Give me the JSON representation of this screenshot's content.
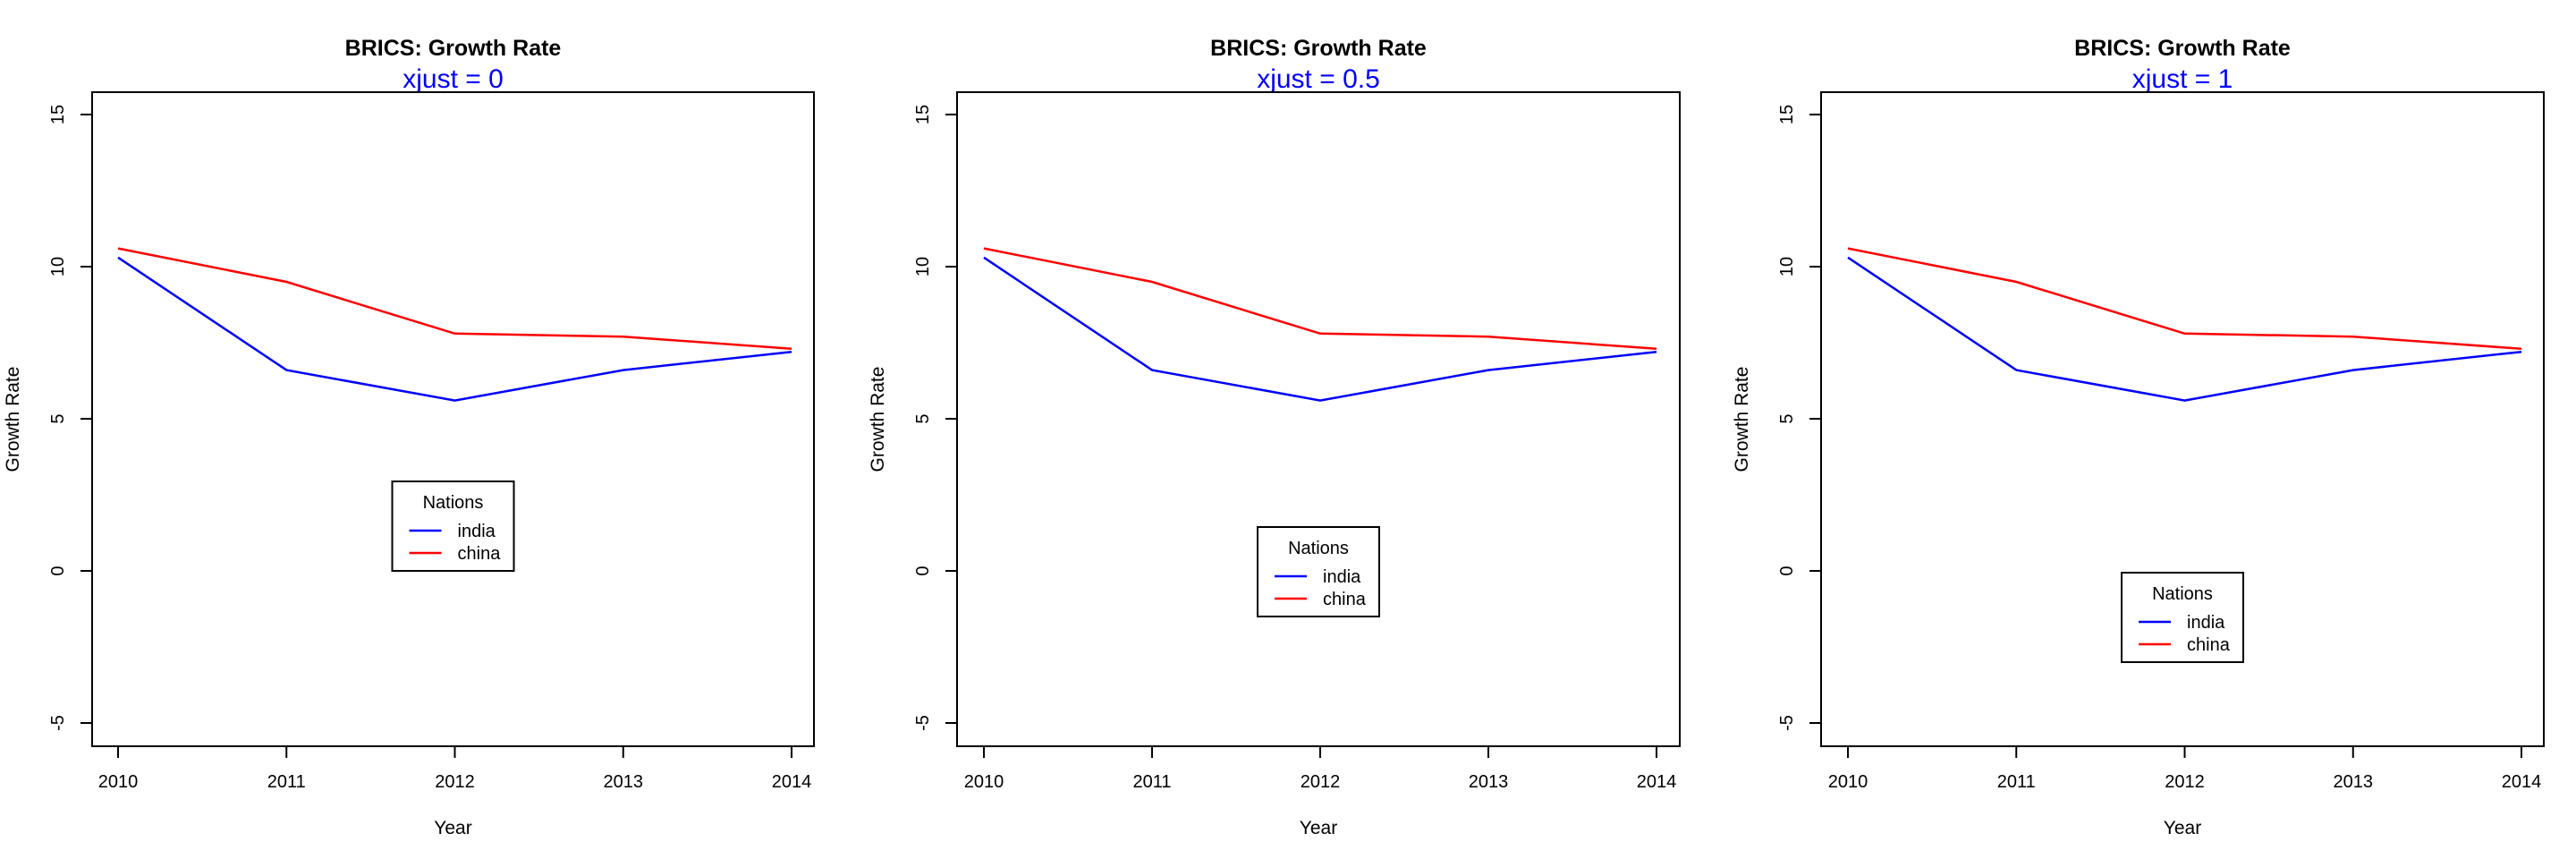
{
  "chart_data": [
    {
      "type": "line",
      "title": "BRICS: Growth Rate",
      "subtitle": "xjust =  0",
      "xlabel": "Year",
      "ylabel": "Growth Rate",
      "x": [
        2010,
        2011,
        2012,
        2013,
        2014
      ],
      "x_tick_labels": [
        "2010",
        "2011",
        "2012",
        "2013",
        "2014"
      ],
      "ylim": [
        -5,
        15
      ],
      "y_ticks": [
        -5,
        0,
        5,
        10,
        15
      ],
      "y_tick_labels": [
        "-5",
        "0",
        "5",
        "10",
        "15"
      ],
      "grid": false,
      "legend": {
        "title": "Nations",
        "placement": "center",
        "xjust": 0
      },
      "series": [
        {
          "name": "india",
          "color": "#0000ff",
          "values": [
            10.3,
            6.6,
            5.6,
            6.6,
            7.2
          ]
        },
        {
          "name": "china",
          "color": "#ff0000",
          "values": [
            10.6,
            9.5,
            7.8,
            7.7,
            7.3
          ]
        }
      ]
    },
    {
      "type": "line",
      "title": "BRICS: Growth Rate",
      "subtitle": "xjust =  0.5",
      "xlabel": "Year",
      "ylabel": "Growth Rate",
      "x": [
        2010,
        2011,
        2012,
        2013,
        2014
      ],
      "x_tick_labels": [
        "2010",
        "2011",
        "2012",
        "2013",
        "2014"
      ],
      "ylim": [
        -5,
        15
      ],
      "y_ticks": [
        -5,
        0,
        5,
        10,
        15
      ],
      "y_tick_labels": [
        "-5",
        "0",
        "5",
        "10",
        "15"
      ],
      "grid": false,
      "legend": {
        "title": "Nations",
        "placement": "center",
        "xjust": 0.5
      },
      "series": [
        {
          "name": "india",
          "color": "#0000ff",
          "values": [
            10.3,
            6.6,
            5.6,
            6.6,
            7.2
          ]
        },
        {
          "name": "china",
          "color": "#ff0000",
          "values": [
            10.6,
            9.5,
            7.8,
            7.7,
            7.3
          ]
        }
      ]
    },
    {
      "type": "line",
      "title": "BRICS: Growth Rate",
      "subtitle": "xjust =  1",
      "xlabel": "Year",
      "ylabel": "Growth Rate",
      "x": [
        2010,
        2011,
        2012,
        2013,
        2014
      ],
      "x_tick_labels": [
        "2010",
        "2011",
        "2012",
        "2013",
        "2014"
      ],
      "ylim": [
        -5,
        15
      ],
      "y_ticks": [
        -5,
        0,
        5,
        10,
        15
      ],
      "y_tick_labels": [
        "-5",
        "0",
        "5",
        "10",
        "15"
      ],
      "grid": false,
      "legend": {
        "title": "Nations",
        "placement": "center",
        "xjust": 1
      },
      "series": [
        {
          "name": "india",
          "color": "#0000ff",
          "values": [
            10.3,
            6.6,
            5.6,
            6.6,
            7.2
          ]
        },
        {
          "name": "china",
          "color": "#ff0000",
          "values": [
            10.6,
            9.5,
            7.8,
            7.7,
            7.3
          ]
        }
      ]
    }
  ],
  "colors": {
    "subtitle": "#0000ff",
    "axis": "#000000"
  }
}
